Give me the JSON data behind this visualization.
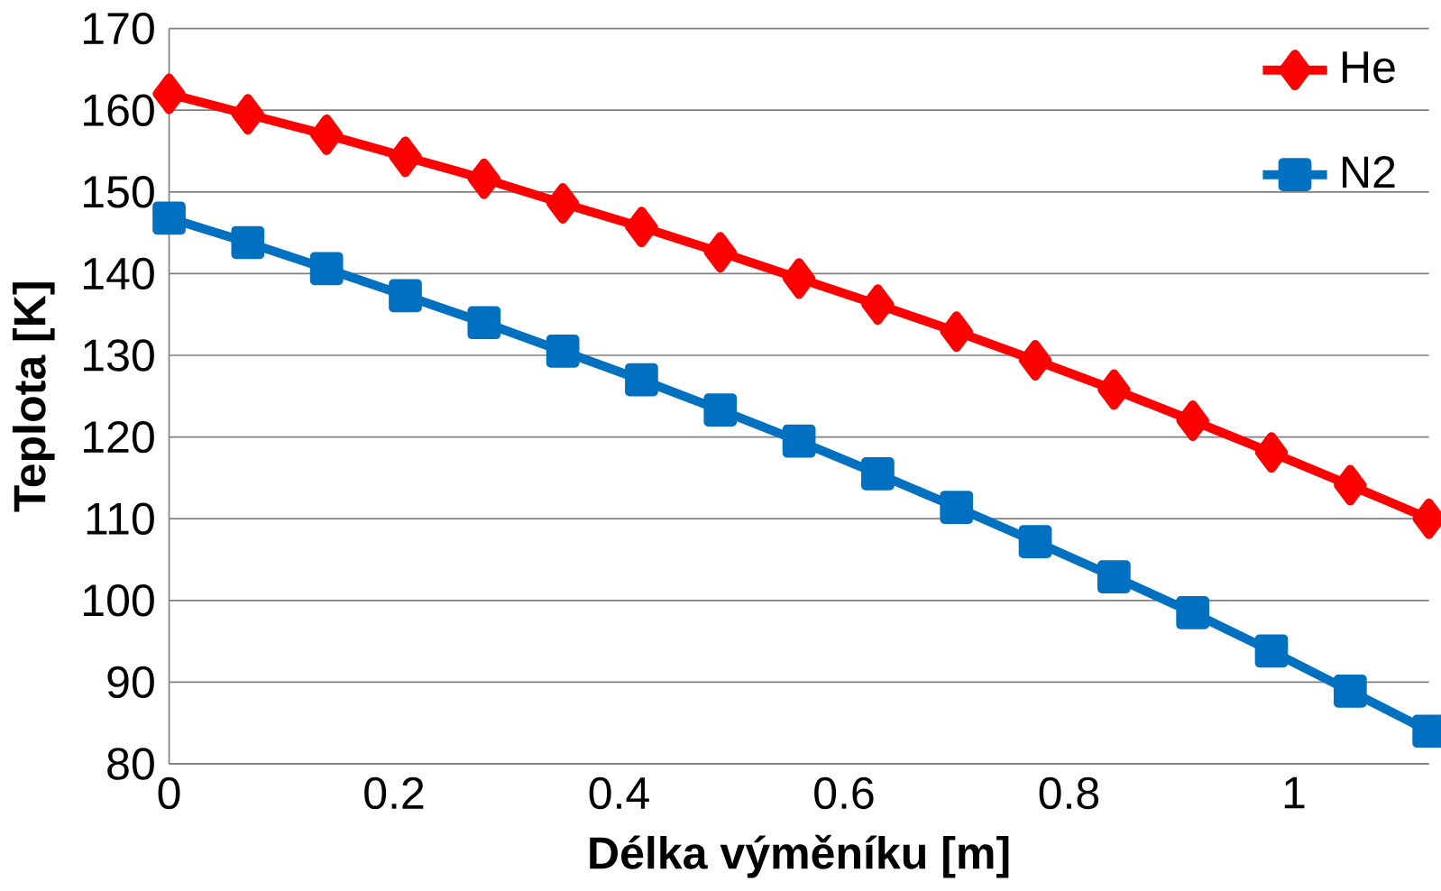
{
  "chart_data": {
    "type": "line",
    "xlabel": "Délka výměníku [m]",
    "ylabel": "Teplota [K]",
    "x": [
      0,
      0.07,
      0.14,
      0.21,
      0.28,
      0.35,
      0.42,
      0.49,
      0.56,
      0.63,
      0.7,
      0.77,
      0.84,
      0.91,
      0.98,
      1.05,
      1.12
    ],
    "series": [
      {
        "name": "He",
        "color": "#ff0000",
        "marker": "diamond",
        "values": [
          162,
          159.5,
          157,
          154.3,
          151.6,
          148.6,
          145.7,
          142.6,
          139.4,
          136.2,
          132.9,
          129.4,
          125.8,
          122,
          118.1,
          114.1,
          110
        ]
      },
      {
        "name": "N2",
        "color": "#0070c0",
        "marker": "square",
        "values": [
          146.8,
          143.8,
          140.6,
          137.3,
          134,
          130.5,
          127,
          123.3,
          119.5,
          115.5,
          111.4,
          107.2,
          102.9,
          98.5,
          93.8,
          88.9,
          84
        ]
      }
    ],
    "xlim": [
      0,
      1.12
    ],
    "xticks": [
      0,
      0.2,
      0.4,
      0.6,
      0.8,
      1
    ],
    "ylim": [
      80,
      170
    ],
    "yticks": [
      80,
      90,
      100,
      110,
      120,
      130,
      140,
      150,
      160,
      170
    ],
    "grid": "y",
    "legend": "top right",
    "line_style": "solid"
  }
}
